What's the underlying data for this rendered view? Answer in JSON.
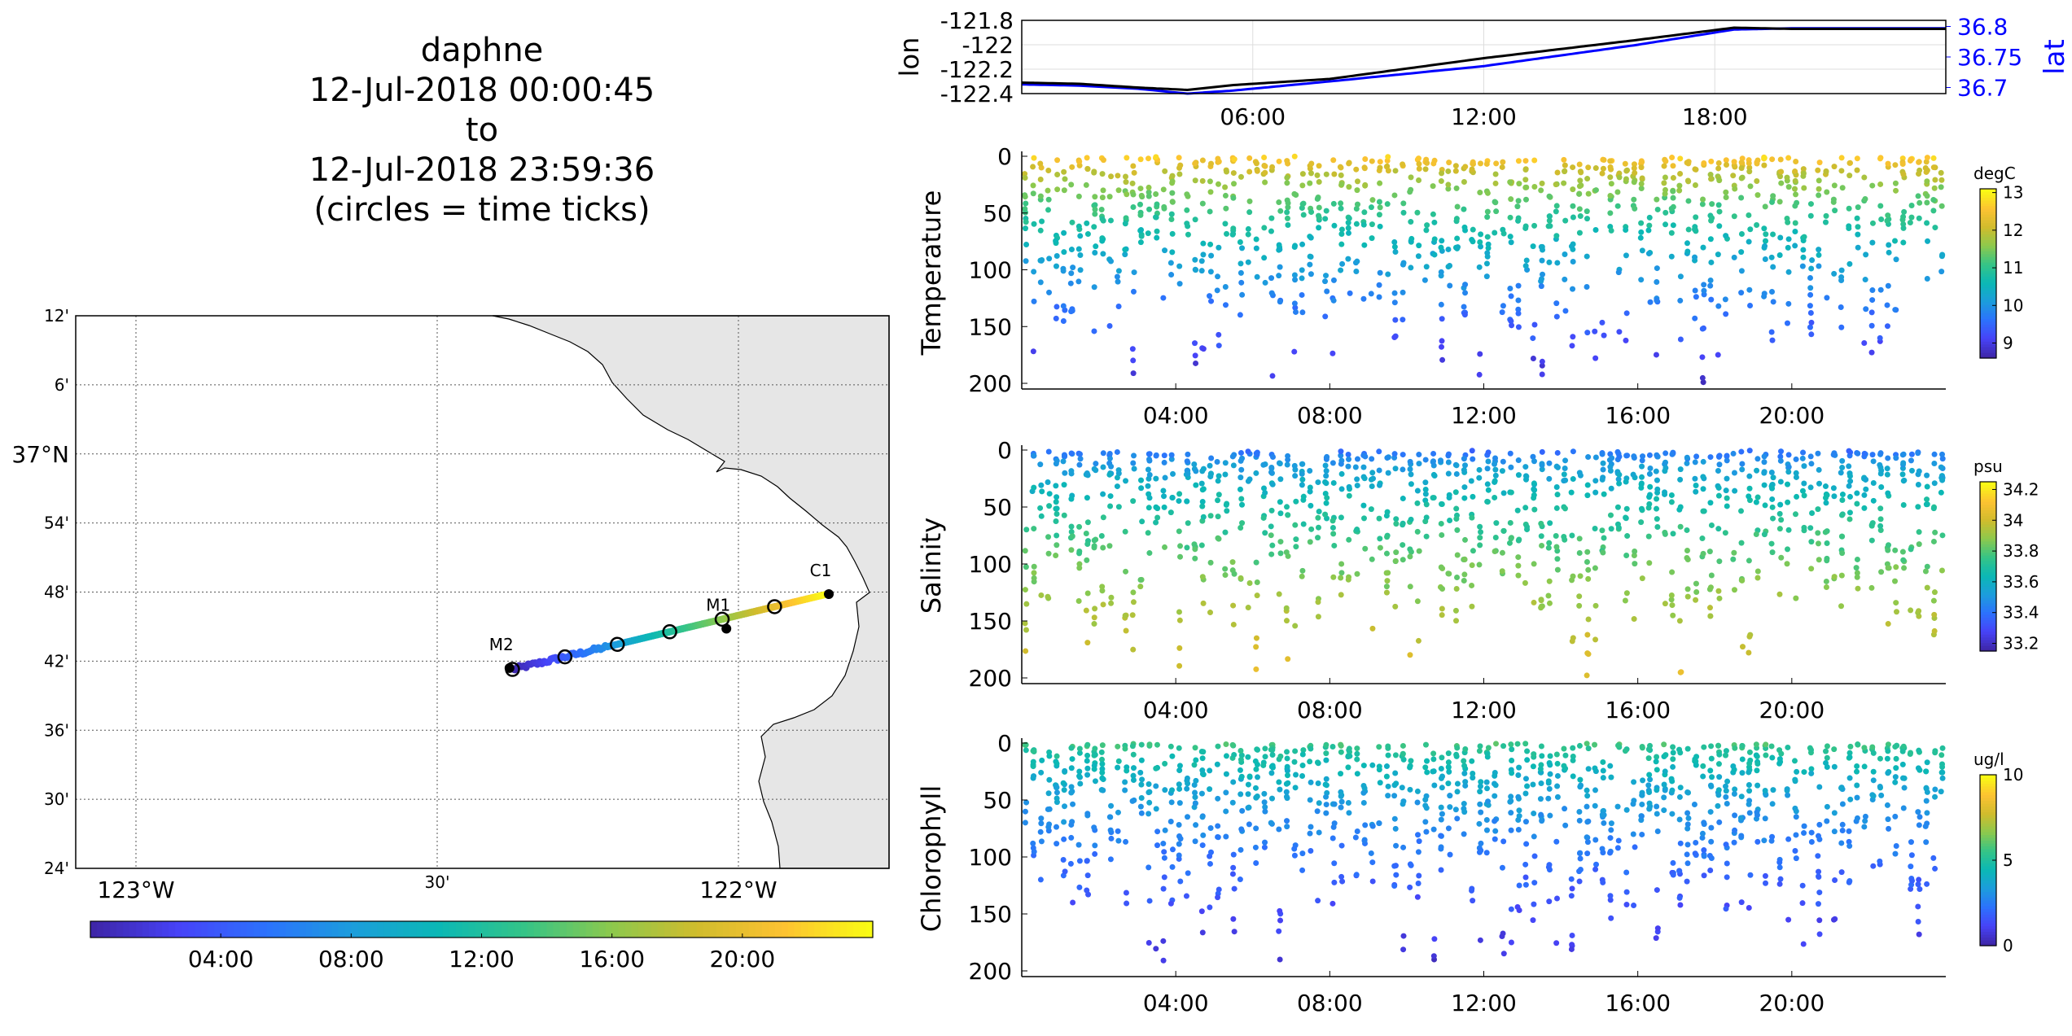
{
  "title": {
    "lines": [
      "daphne",
      "12-Jul-2018 00:00:45",
      "to",
      "12-Jul-2018 23:59:36",
      "(circles = time ticks)"
    ]
  },
  "map": {
    "lat_ticks": [
      "12'",
      "6'",
      "37°N",
      "54'",
      "48'",
      "42'",
      "36'",
      "30'",
      "24'"
    ],
    "lat_values": [
      37.2,
      37.1,
      37.0,
      36.9,
      36.8,
      36.7,
      36.6,
      36.5,
      36.4
    ],
    "lon_ticks": [
      "123°W",
      "30'",
      "122°W"
    ],
    "lon_values": [
      -123.0,
      -122.5,
      -122.0
    ],
    "xlim": [
      -123.1,
      -121.75
    ],
    "ylim": [
      36.4,
      37.2
    ],
    "stations": [
      {
        "name": "C1",
        "lon": -121.85,
        "lat": 36.797
      },
      {
        "name": "M1",
        "lon": -122.02,
        "lat": 36.747
      },
      {
        "name": "M2",
        "lon": -122.38,
        "lat": 36.69
      }
    ],
    "track": {
      "start": [
        -122.375,
        36.688
      ],
      "end": [
        -121.853,
        36.797
      ]
    },
    "tick_circle_hours": [
      0,
      4,
      8,
      12,
      16,
      20
    ],
    "colorbar_ticks": [
      "04:00",
      "08:00",
      "12:00",
      "16:00",
      "20:00"
    ],
    "colorbar_hours": [
      4,
      8,
      12,
      16,
      20
    ]
  },
  "colors": {
    "parula": [
      "#3e26a8",
      "#4743f8",
      "#2c72fd",
      "#1c9ddc",
      "#0bb8b5",
      "#35c487",
      "#8cc94d",
      "#d0bc2d",
      "#fdc232",
      "#f9fb14"
    ],
    "lat_line": "#0000ff",
    "lon_line": "#000000",
    "land": "#e6e6e6"
  },
  "chart_data": [
    {
      "type": "line",
      "name": "position",
      "x_ticks": [
        "06:00",
        "12:00",
        "18:00"
      ],
      "x_tick_hours": [
        6,
        12,
        18
      ],
      "xlim_hours": [
        0,
        24
      ],
      "series": [
        {
          "name": "lon",
          "hours": [
            0,
            1.5,
            3,
            4.3,
            5.5,
            8,
            12,
            16,
            18.5,
            20,
            24
          ],
          "values": [
            -122.31,
            -122.32,
            -122.35,
            -122.37,
            -122.33,
            -122.28,
            -122.11,
            -121.96,
            -121.86,
            -121.87,
            -121.87
          ]
        },
        {
          "name": "lat",
          "hours": [
            0,
            1.5,
            3,
            4.3,
            5.5,
            8,
            12,
            16,
            18.5,
            20,
            24
          ],
          "values": [
            36.705,
            36.703,
            36.698,
            36.69,
            36.695,
            36.71,
            36.735,
            36.77,
            36.795,
            36.797,
            36.797
          ]
        }
      ],
      "ylabel_left": "lon",
      "ylabel_right": "lat",
      "left_ticks": [
        "-121.8",
        "-122",
        "-122.2",
        "-122.4"
      ],
      "left_values": [
        -121.8,
        -122.0,
        -122.2,
        -122.4
      ],
      "left_ylim": [
        -122.4,
        -121.8
      ],
      "right_ticks": [
        "36.8",
        "36.75",
        "36.7"
      ],
      "right_values": [
        36.8,
        36.75,
        36.7
      ],
      "right_ylim": [
        36.69,
        36.81
      ]
    },
    {
      "type": "scatter",
      "name": "temperature",
      "ylabel": "Temperature",
      "units": "degC",
      "y_ticks": [
        "0",
        "50",
        "100",
        "150",
        "200"
      ],
      "y_values": [
        0,
        50,
        100,
        150,
        200
      ],
      "ylim": [
        0,
        205
      ],
      "x_ticks": [
        "04:00",
        "08:00",
        "12:00",
        "16:00",
        "20:00"
      ],
      "x_tick_hours": [
        4,
        8,
        12,
        16,
        20
      ],
      "xlim_hours": [
        0,
        24
      ],
      "colorbar_ticks": [
        "13",
        "12",
        "11",
        "10",
        "9"
      ],
      "colorbar_values": [
        13,
        12,
        11,
        10,
        9
      ],
      "clim": [
        8.6,
        13.1
      ],
      "profiles_per_hour": 5,
      "surface_value": 13.0,
      "deep_value": 8.8
    },
    {
      "type": "scatter",
      "name": "salinity",
      "ylabel": "Salinity",
      "units": "psu",
      "y_ticks": [
        "0",
        "50",
        "100",
        "150",
        "200"
      ],
      "y_values": [
        0,
        50,
        100,
        150,
        200
      ],
      "ylim": [
        0,
        205
      ],
      "x_ticks": [
        "04:00",
        "08:00",
        "12:00",
        "16:00",
        "20:00"
      ],
      "x_tick_hours": [
        4,
        8,
        12,
        16,
        20
      ],
      "xlim_hours": [
        0,
        24
      ],
      "colorbar_ticks": [
        "34.2",
        "34",
        "33.8",
        "33.6",
        "33.4",
        "33.2"
      ],
      "colorbar_values": [
        34.2,
        34.0,
        33.8,
        33.6,
        33.4,
        33.2
      ],
      "clim": [
        33.15,
        34.25
      ],
      "profiles_per_hour": 5,
      "surface_value": 33.35,
      "deep_value": 34.05
    },
    {
      "type": "scatter",
      "name": "chlorophyll",
      "ylabel": "Chlorophyll",
      "units": "ug/l",
      "y_ticks": [
        "0",
        "50",
        "100",
        "150",
        "200"
      ],
      "y_values": [
        0,
        50,
        100,
        150,
        200
      ],
      "ylim": [
        0,
        205
      ],
      "x_ticks": [
        "04:00",
        "08:00",
        "12:00",
        "16:00",
        "20:00"
      ],
      "x_tick_hours": [
        4,
        8,
        12,
        16,
        20
      ],
      "xlim_hours": [
        0,
        24
      ],
      "colorbar_ticks": [
        "10",
        "5",
        "0"
      ],
      "colorbar_values": [
        10,
        5,
        0
      ],
      "clim": [
        0,
        10
      ],
      "profiles_per_hour": 5,
      "surface_value": 6.0,
      "deep_value": 0.5
    }
  ]
}
